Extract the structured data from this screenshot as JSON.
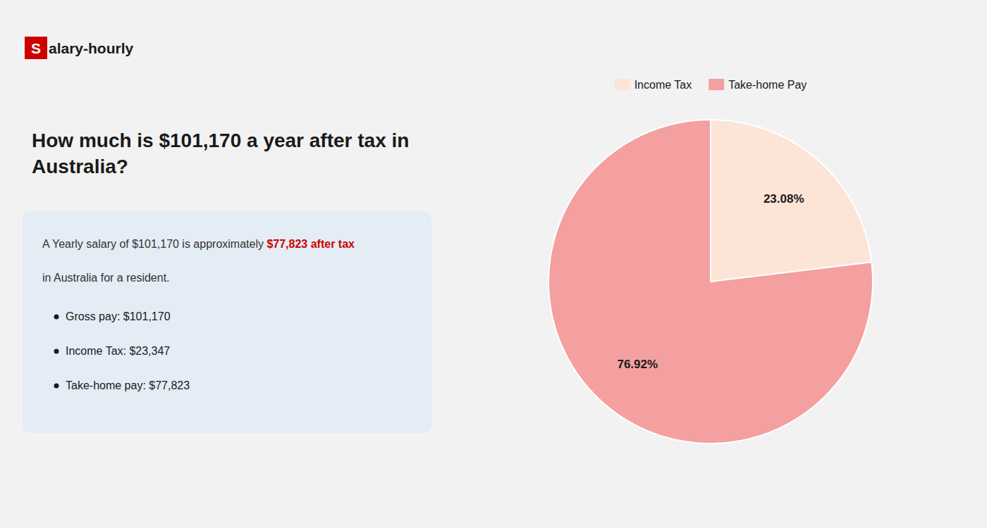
{
  "chart_data": {
    "type": "pie",
    "title": "How much is $101,170 a year after tax in\nAustralia?",
    "categories": [
      "Income Tax",
      "Take-home Pay"
    ],
    "values": [
      23.08,
      76.92
    ],
    "value_labels": [
      "23.08%",
      "76.92%"
    ],
    "colors": [
      "#fce4d6",
      "#f4a0a0"
    ],
    "data_labels": true,
    "legend": "top",
    "annotations": [
      {
        "text": "S",
        "color": "#cc0000"
      },
      {
        "text": "alary-hourly"
      },
      {
        "text": "A Yearly salary of $101,170 is approximately "
      },
      {
        "text": "$77,823 after tax",
        "color": "#cc0000"
      },
      {
        "text": "in Australia for a resident."
      },
      {
        "text": "Gross pay: $101,170"
      },
      {
        "text": "Income Tax: $23,347"
      },
      {
        "text": "Take-home pay: $77,823"
      }
    ]
  }
}
